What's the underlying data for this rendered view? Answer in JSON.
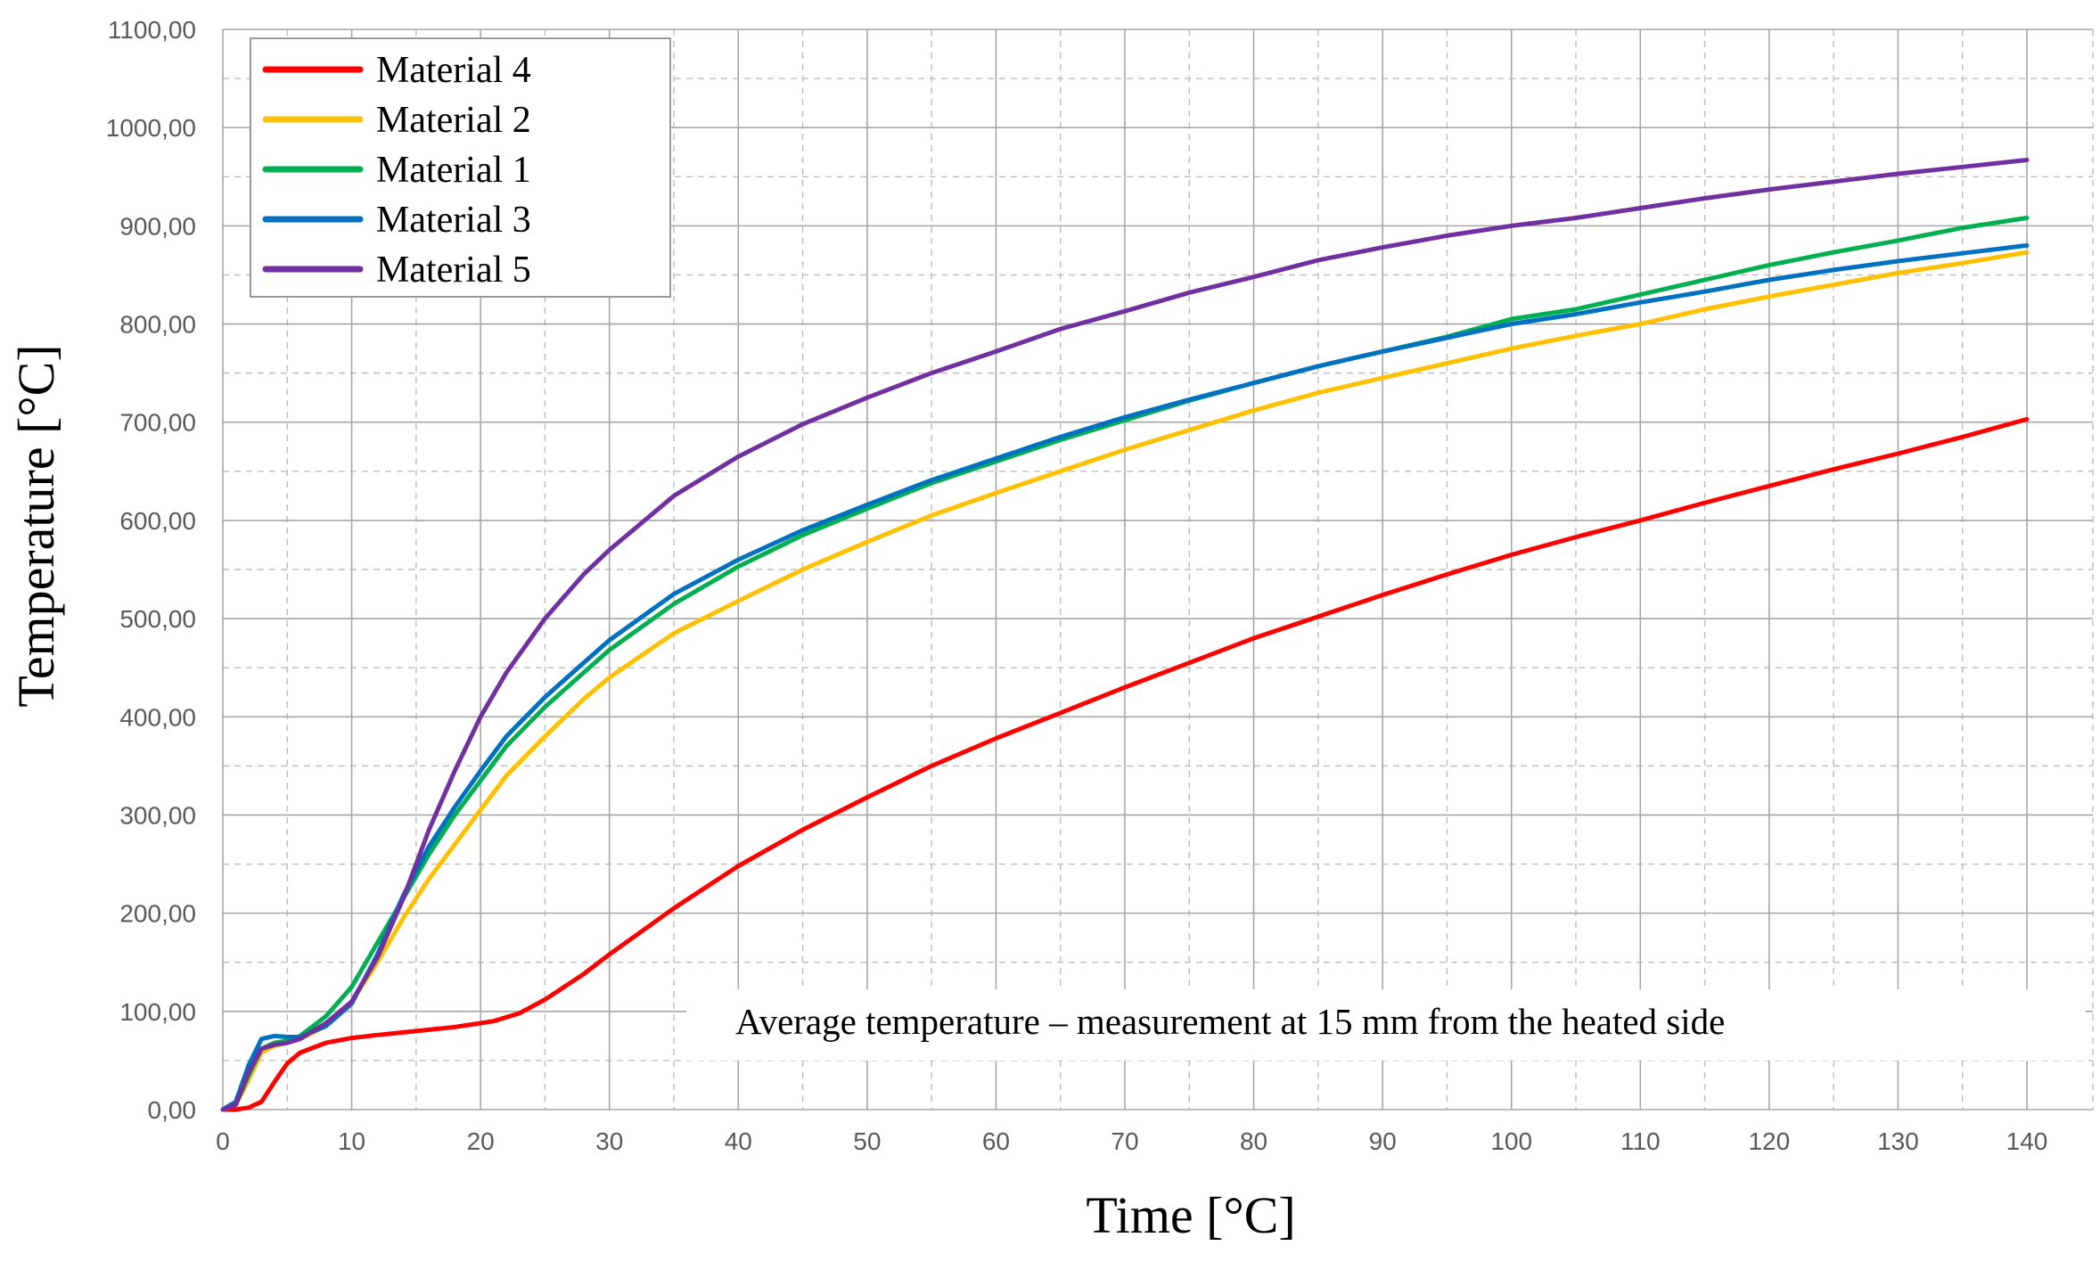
{
  "chart_data": {
    "type": "line",
    "title": "",
    "xlabel": "Time [°C]",
    "ylabel": "Temperature [°C]",
    "xlim": [
      0,
      140
    ],
    "ylim": [
      0,
      1100
    ],
    "x_major_step": 10,
    "x_minor_step": 5,
    "y_major_step": 100,
    "y_minor_step": 50,
    "x_tick_labels": [
      "0",
      "10",
      "20",
      "30",
      "40",
      "50",
      "60",
      "70",
      "80",
      "90",
      "100",
      "110",
      "120",
      "130",
      "140"
    ],
    "y_tick_labels": [
      "0,00",
      "100,00",
      "200,00",
      "300,00",
      "400,00",
      "500,00",
      "600,00",
      "700,00",
      "800,00",
      "900,00",
      "1000,00",
      "1100,00"
    ],
    "grid": true,
    "legend_position": "top-left",
    "annotation": "Average temperature – measurement at 15 mm from the heated side",
    "series": [
      {
        "name": "Material 4",
        "color": "#ff0000",
        "x": [
          0,
          1,
          2,
          3,
          4,
          5,
          6,
          8,
          10,
          12,
          15,
          18,
          21,
          23,
          25,
          28,
          30,
          35,
          40,
          45,
          50,
          55,
          60,
          65,
          70,
          75,
          80,
          85,
          90,
          95,
          100,
          105,
          110,
          115,
          120,
          125,
          130,
          135,
          140
        ],
        "values": [
          0,
          0,
          2,
          8,
          28,
          47,
          58,
          68,
          73,
          76,
          80,
          84,
          90,
          98,
          112,
          138,
          158,
          205,
          248,
          285,
          318,
          350,
          378,
          404,
          430,
          455,
          480,
          502,
          524,
          545,
          565,
          583,
          600,
          618,
          635,
          652,
          668,
          685,
          703
        ]
      },
      {
        "name": "Material 2",
        "color": "#ffc000",
        "x": [
          0,
          1,
          2,
          3,
          4,
          5,
          6,
          8,
          10,
          12,
          14,
          16,
          18,
          20,
          22,
          25,
          28,
          30,
          35,
          40,
          45,
          50,
          55,
          60,
          65,
          70,
          75,
          80,
          85,
          90,
          95,
          100,
          105,
          110,
          115,
          120,
          125,
          130,
          135,
          140
        ],
        "values": [
          0,
          5,
          30,
          58,
          65,
          68,
          72,
          85,
          110,
          150,
          195,
          235,
          270,
          305,
          340,
          380,
          418,
          440,
          485,
          518,
          550,
          578,
          605,
          628,
          650,
          672,
          692,
          712,
          730,
          745,
          760,
          775,
          788,
          800,
          815,
          828,
          840,
          852,
          862,
          873
        ]
      },
      {
        "name": "Material 1",
        "color": "#00b050",
        "x": [
          0,
          1,
          2,
          3,
          4,
          5,
          6,
          8,
          10,
          12,
          14,
          16,
          18,
          20,
          22,
          25,
          28,
          30,
          35,
          40,
          45,
          50,
          55,
          60,
          65,
          70,
          75,
          80,
          85,
          90,
          95,
          100,
          105,
          110,
          115,
          120,
          125,
          130,
          135,
          140
        ],
        "values": [
          0,
          5,
          35,
          62,
          68,
          70,
          75,
          95,
          125,
          170,
          215,
          260,
          300,
          335,
          370,
          410,
          445,
          468,
          515,
          553,
          585,
          612,
          638,
          660,
          682,
          702,
          722,
          740,
          757,
          772,
          787,
          805,
          815,
          830,
          845,
          860,
          873,
          885,
          898,
          908
        ]
      },
      {
        "name": "Material 3",
        "color": "#0070c0",
        "x": [
          0,
          1,
          2,
          3,
          4,
          5,
          6,
          8,
          10,
          12,
          14,
          16,
          18,
          20,
          22,
          25,
          28,
          30,
          35,
          40,
          45,
          50,
          55,
          60,
          65,
          70,
          75,
          80,
          85,
          90,
          95,
          100,
          105,
          110,
          115,
          120,
          125,
          130,
          135,
          140
        ],
        "values": [
          0,
          8,
          45,
          72,
          75,
          74,
          74,
          85,
          108,
          158,
          218,
          268,
          308,
          345,
          380,
          420,
          455,
          478,
          525,
          560,
          590,
          616,
          641,
          663,
          685,
          705,
          723,
          740,
          757,
          772,
          786,
          800,
          810,
          822,
          833,
          845,
          855,
          864,
          872,
          880
        ]
      },
      {
        "name": "Material 5",
        "color": "#7030a0",
        "x": [
          0,
          1,
          2,
          3,
          4,
          5,
          6,
          8,
          10,
          12,
          14,
          16,
          18,
          20,
          22,
          25,
          28,
          30,
          35,
          40,
          45,
          50,
          55,
          60,
          65,
          70,
          75,
          80,
          85,
          90,
          95,
          100,
          105,
          110,
          115,
          120,
          125,
          130,
          135,
          140
        ],
        "values": [
          0,
          5,
          38,
          62,
          66,
          68,
          72,
          88,
          110,
          155,
          215,
          285,
          345,
          400,
          445,
          500,
          545,
          570,
          625,
          665,
          698,
          725,
          750,
          772,
          795,
          813,
          832,
          848,
          865,
          878,
          890,
          900,
          908,
          918,
          928,
          937,
          945,
          953,
          960,
          967
        ]
      }
    ]
  }
}
